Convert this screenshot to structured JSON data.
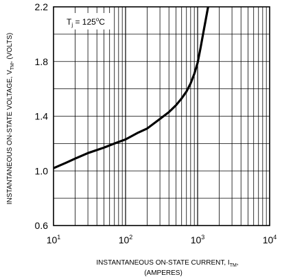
{
  "chart_data": {
    "type": "line",
    "title": "",
    "x_scale": "log",
    "y_scale": "linear",
    "xlim": [
      10,
      10000
    ],
    "ylim": [
      0.6,
      2.2
    ],
    "grid": true,
    "x_ticks": [
      {
        "base": "10",
        "exp": "1"
      },
      {
        "base": "10",
        "exp": "2"
      },
      {
        "base": "10",
        "exp": "3"
      },
      {
        "base": "10",
        "exp": "4"
      }
    ],
    "y_ticks": [
      "0.6",
      "1.0",
      "1.4",
      "1.8",
      "2.2"
    ],
    "xlabel": {
      "main": "INSTANTANEOUS ON-STATE CURRENT, I",
      "sub": "TM",
      "suffix": ",",
      "line2": "(AMPERES)"
    },
    "ylabel": {
      "main": "INSTANTANEOUS ON-STATE VOLTAGE, V",
      "sub": "TM",
      "suffix": ", (VOLTS)"
    },
    "annotation": {
      "prefix": "T",
      "sub": "j",
      "value": " = 125",
      "degree": "o",
      "unit": "C"
    },
    "series": [
      {
        "x": [
          10,
          15,
          20,
          30,
          50,
          70,
          100,
          150,
          200,
          300,
          400,
          500,
          600,
          700,
          800,
          900,
          1000,
          1100,
          1200,
          1300,
          1400
        ],
        "y": [
          1.02,
          1.06,
          1.09,
          1.13,
          1.17,
          1.2,
          1.23,
          1.28,
          1.31,
          1.38,
          1.43,
          1.48,
          1.53,
          1.58,
          1.64,
          1.71,
          1.79,
          1.9,
          2.01,
          2.11,
          2.21
        ]
      }
    ]
  }
}
